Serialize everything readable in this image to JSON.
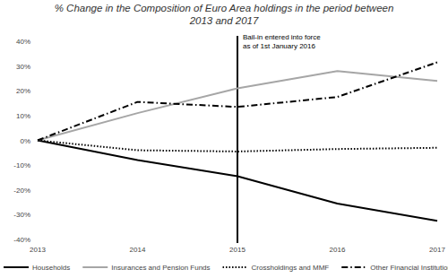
{
  "chart_data": {
    "type": "line",
    "title": [
      "% Change in the Composition of Euro Area holdings in the period between",
      "2013 and 2017"
    ],
    "categories": [
      "2013",
      "2014",
      "2015",
      "2016",
      "2017"
    ],
    "series": [
      {
        "name": "Households",
        "color": "#000000",
        "line_style": "solid",
        "values": [
          0,
          -8,
          -14.5,
          -25.5,
          -32.5
        ]
      },
      {
        "name": "Insurances and Pension Funds",
        "color": "#a6a6a6",
        "line_style": "solid",
        "values": [
          0,
          11,
          21,
          28,
          24
        ]
      },
      {
        "name": "Crossholdings and MMF",
        "color": "#000000",
        "line_style": "dotted",
        "values": [
          0,
          -4,
          -4.5,
          -3.5,
          -3
        ]
      },
      {
        "name": "Other Financial Institutions",
        "color": "#000000",
        "line_style": "dashdot",
        "values": [
          0,
          15.5,
          13.5,
          17.5,
          31.5
        ]
      }
    ],
    "ylim": [
      -40,
      40
    ],
    "yticks": [
      {
        "value": -40,
        "label": "-40%"
      },
      {
        "value": -30,
        "label": "-30%"
      },
      {
        "value": -20,
        "label": "-20%"
      },
      {
        "value": -10,
        "label": "-10%"
      },
      {
        "value": 0,
        "label": "0%"
      },
      {
        "value": 10,
        "label": "10%"
      },
      {
        "value": 20,
        "label": "20%"
      },
      {
        "value": 30,
        "label": "30%"
      },
      {
        "value": 40,
        "label": "40%"
      }
    ],
    "grid": false,
    "legend": "bottom",
    "annotations": [
      {
        "x": "2015",
        "text": [
          "Bail-in entered into force",
          "as of 1st January 2016"
        ]
      }
    ]
  }
}
